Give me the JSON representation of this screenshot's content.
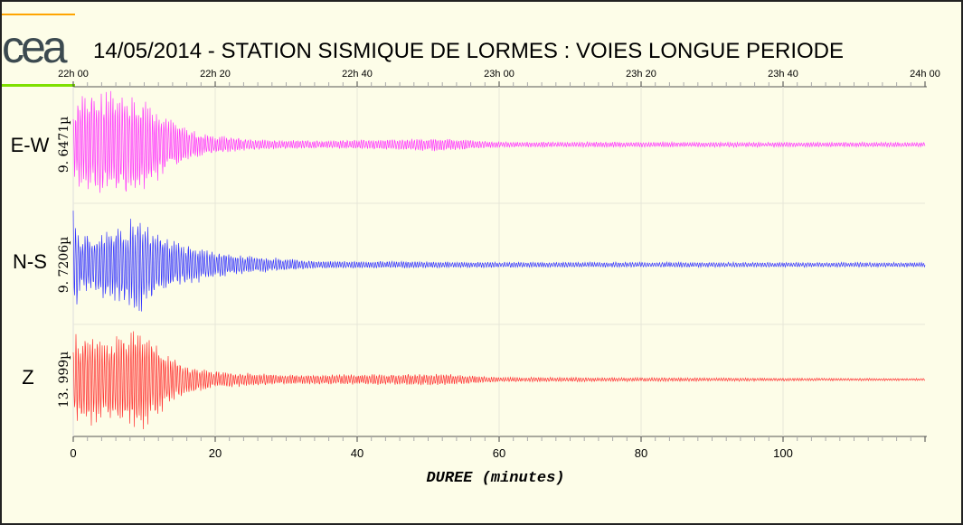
{
  "logo_text": "cea",
  "title": "14/05/2014  -  STATION SISMIQUE DE LORMES : VOIES LONGUE PERIODE",
  "colors": {
    "background": "#fdfde8",
    "logo_top_bar": "#ffa500",
    "logo_bottom_bar": "#7fe000",
    "logo": "#3c4a50"
  },
  "chart_data": {
    "type": "line",
    "title": "14/05/2014  -  STATION SISMIQUE DE LORMES : VOIES LONGUE PERIODE",
    "xlabel": "DUREE (minutes)",
    "xlim": [
      0,
      120
    ],
    "x_ticks": [
      "0",
      "20",
      "40",
      "60",
      "80",
      "100"
    ],
    "x_tick_values": [
      0,
      20,
      40,
      60,
      80,
      100
    ],
    "top_time_ticks": [
      "22h 00",
      "22h 20",
      "22h 40",
      "23h 00",
      "23h 20",
      "23h 40",
      "24h 00"
    ],
    "grid": "vertical at 20-minute intervals",
    "series": [
      {
        "name": "E-W",
        "scale_label": "9. 6471µ",
        "color": "#ff33ff",
        "envelope_minutes": [
          0,
          1,
          3,
          6,
          9,
          11,
          14,
          18,
          25,
          35,
          52,
          60,
          120
        ],
        "envelope_fraction": [
          0.6,
          1.0,
          0.95,
          1.0,
          0.9,
          0.75,
          0.45,
          0.2,
          0.1,
          0.07,
          0.12,
          0.05,
          0.04
        ]
      },
      {
        "name": "N-S",
        "scale_label": "9. 7206µ",
        "color": "#3333ff",
        "envelope_minutes": [
          0,
          1,
          4,
          7,
          9,
          12,
          15,
          20,
          26,
          35,
          60,
          120
        ],
        "envelope_fraction": [
          1.0,
          0.55,
          0.6,
          0.7,
          1.0,
          0.55,
          0.4,
          0.25,
          0.15,
          0.07,
          0.05,
          0.04
        ]
      },
      {
        "name": "Z",
        "scale_label": "13. 999µ",
        "color": "#ff3333",
        "envelope_minutes": [
          0,
          2,
          5,
          9,
          11,
          13,
          16,
          20,
          30,
          52,
          60,
          120
        ],
        "envelope_fraction": [
          0.8,
          0.8,
          0.7,
          1.0,
          0.8,
          0.5,
          0.25,
          0.15,
          0.08,
          0.1,
          0.04,
          0.02
        ]
      }
    ]
  }
}
